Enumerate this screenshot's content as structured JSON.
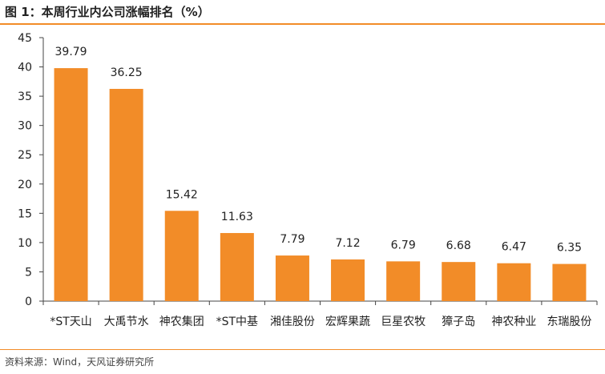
{
  "header": {
    "title": "图 1：本周行业内公司涨幅排名（%）"
  },
  "footer": {
    "source": "资料来源：Wind，天风证券研究所"
  },
  "colors": {
    "bar": "#f28c28",
    "rule": "#f28c28",
    "axis": "#444444"
  },
  "chart_data": {
    "type": "bar",
    "title": "本周行业内公司涨幅排名（%）",
    "categories": [
      "*ST天山",
      "大禹节水",
      "神农集团",
      "*ST中基",
      "湘佳股份",
      "宏辉果蔬",
      "巨星农牧",
      "獐子岛",
      "神农种业",
      "东瑞股份"
    ],
    "values": [
      39.79,
      36.25,
      15.42,
      11.63,
      7.79,
      7.12,
      6.79,
      6.68,
      6.47,
      6.35
    ],
    "data_labels": [
      "39.79",
      "36.25",
      "15.42",
      "11.63",
      "7.79",
      "7.12",
      "6.79",
      "6.68",
      "6.47",
      "6.35"
    ],
    "ylim": [
      0,
      45
    ],
    "yticks": [
      0,
      5,
      10,
      15,
      20,
      25,
      30,
      35,
      40,
      45
    ],
    "xlabel": "",
    "ylabel": "",
    "grid": false,
    "legend": "none"
  }
}
